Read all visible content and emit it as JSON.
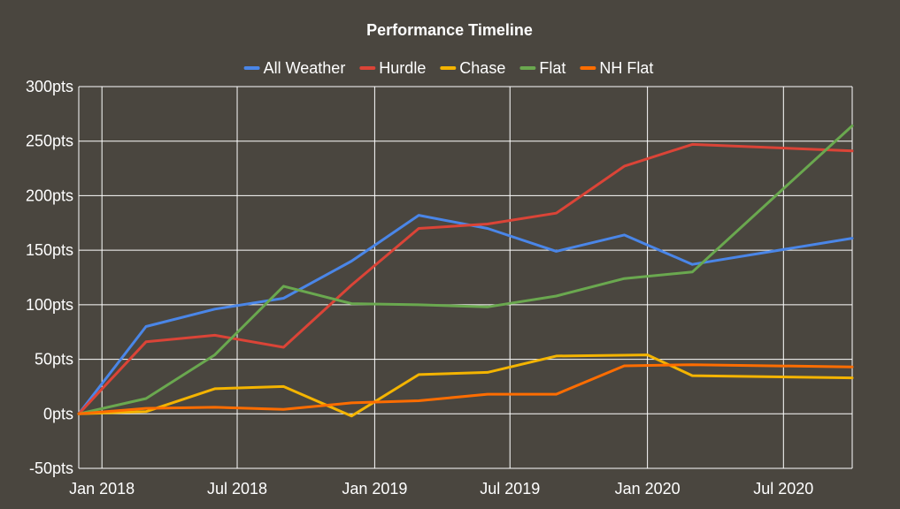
{
  "chart_data": {
    "type": "line",
    "title": "Performance Timeline",
    "xlabel": "",
    "ylabel": "",
    "legend_position": "top",
    "grid": true,
    "background_color": "#4a463f",
    "grid_color": "#ffffff",
    "text_color": "#ffffff",
    "x_ticks": [
      "2018-01-01",
      "2018-07-01",
      "2019-01-01",
      "2019-07-01",
      "2020-01-01",
      "2020-07-01"
    ],
    "x_tick_labels": [
      "Jan 2018",
      "Jul 2018",
      "Jan 2019",
      "Jul 2019",
      "Jan 2020",
      "Jul 2020"
    ],
    "xlim": [
      "2017-12-01",
      "2020-10-01"
    ],
    "y_ticks": [
      -50,
      0,
      50,
      100,
      150,
      200,
      250,
      300
    ],
    "y_tick_labels": [
      "-50pts",
      "0pts",
      "50pts",
      "100pts",
      "150pts",
      "200pts",
      "250pts",
      "300pts"
    ],
    "ylim": [
      -50,
      300
    ],
    "series": [
      {
        "name": "All Weather",
        "color": "#4a86e8",
        "points": [
          [
            "2017-12-01",
            0
          ],
          [
            "2018-03-01",
            80
          ],
          [
            "2018-06-01",
            96
          ],
          [
            "2018-09-01",
            106
          ],
          [
            "2018-12-01",
            140
          ],
          [
            "2019-03-01",
            182
          ],
          [
            "2019-06-01",
            170
          ],
          [
            "2019-09-01",
            149
          ],
          [
            "2019-12-01",
            164
          ],
          [
            "2020-03-01",
            137
          ],
          [
            "2020-10-01",
            161
          ]
        ]
      },
      {
        "name": "Hurdle",
        "color": "#db4437",
        "points": [
          [
            "2017-12-01",
            0
          ],
          [
            "2018-03-01",
            66
          ],
          [
            "2018-06-01",
            72
          ],
          [
            "2018-09-01",
            61
          ],
          [
            "2018-12-01",
            118
          ],
          [
            "2019-03-01",
            170
          ],
          [
            "2019-06-01",
            174
          ],
          [
            "2019-09-01",
            184
          ],
          [
            "2019-12-01",
            227
          ],
          [
            "2020-03-01",
            247
          ],
          [
            "2020-10-01",
            241
          ]
        ]
      },
      {
        "name": "Chase",
        "color": "#f4b400",
        "points": [
          [
            "2017-12-01",
            0
          ],
          [
            "2018-03-01",
            2
          ],
          [
            "2018-06-01",
            23
          ],
          [
            "2018-09-01",
            25
          ],
          [
            "2018-12-01",
            -2
          ],
          [
            "2019-03-01",
            36
          ],
          [
            "2019-06-01",
            38
          ],
          [
            "2019-09-01",
            53
          ],
          [
            "2020-01-01",
            54
          ],
          [
            "2020-03-01",
            35
          ],
          [
            "2020-10-01",
            33
          ]
        ]
      },
      {
        "name": "Flat",
        "color": "#6aa84f",
        "points": [
          [
            "2017-12-01",
            0
          ],
          [
            "2018-03-01",
            14
          ],
          [
            "2018-06-01",
            54
          ],
          [
            "2018-09-01",
            117
          ],
          [
            "2018-12-01",
            101
          ],
          [
            "2019-03-01",
            100
          ],
          [
            "2019-06-01",
            98
          ],
          [
            "2019-09-01",
            108
          ],
          [
            "2019-12-01",
            124
          ],
          [
            "2020-03-01",
            130
          ],
          [
            "2020-10-01",
            264
          ]
        ]
      },
      {
        "name": "NH Flat",
        "color": "#ff6d00",
        "points": [
          [
            "2017-12-01",
            0
          ],
          [
            "2018-03-01",
            5
          ],
          [
            "2018-06-01",
            6
          ],
          [
            "2018-09-01",
            4
          ],
          [
            "2018-12-01",
            10
          ],
          [
            "2019-03-01",
            12
          ],
          [
            "2019-06-01",
            18
          ],
          [
            "2019-09-01",
            18
          ],
          [
            "2019-12-01",
            44
          ],
          [
            "2020-03-01",
            45
          ],
          [
            "2020-10-01",
            43
          ]
        ]
      }
    ]
  }
}
